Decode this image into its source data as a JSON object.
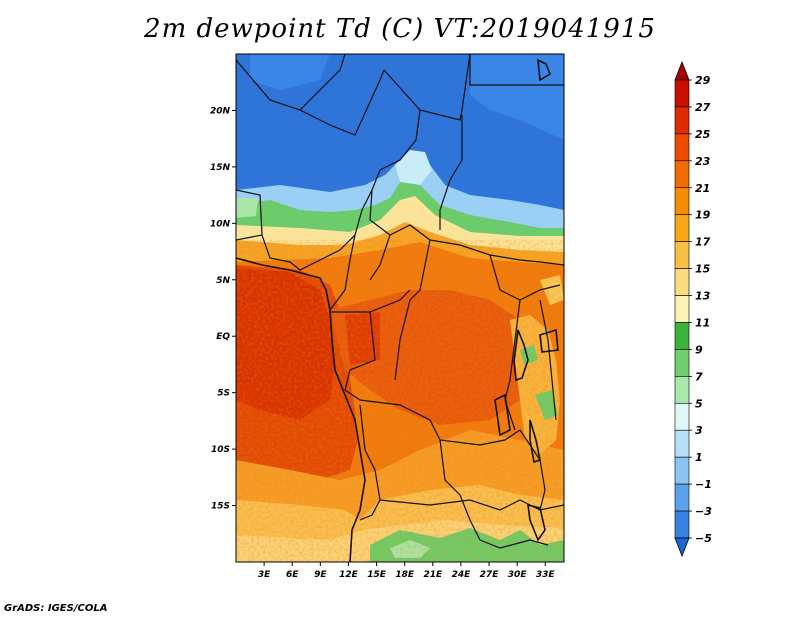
{
  "title": "2m dewpoint Td (C) VT:2019041915",
  "footer": "GrADS: IGES/COLA",
  "map": {
    "variable": "2m dewpoint",
    "units": "C",
    "valid_time": "2019041915",
    "lat_labels": [
      "20N",
      "15N",
      "10N",
      "5N",
      "EQ",
      "5S",
      "10S",
      "15S"
    ],
    "lat_values": [
      20,
      15,
      10,
      5,
      0,
      -5,
      -10,
      -15
    ],
    "lon_labels": [
      "3E",
      "6E",
      "9E",
      "12E",
      "15E",
      "18E",
      "21E",
      "24E",
      "27E",
      "30E",
      "33E"
    ],
    "lon_values": [
      3,
      6,
      9,
      12,
      15,
      18,
      21,
      24,
      27,
      30,
      33
    ],
    "lon_range": [
      0,
      35
    ],
    "lat_range": [
      -20,
      25
    ]
  },
  "colorbar": {
    "labels": [
      "29",
      "27",
      "25",
      "23",
      "21",
      "19",
      "17",
      "15",
      "13",
      "11",
      "9",
      "7",
      "5",
      "3",
      "1",
      "−1",
      "−3",
      "−5"
    ],
    "colors": [
      "#a50000",
      "#c80f00",
      "#e02a00",
      "#ee4a00",
      "#f26b00",
      "#f58d00",
      "#f8a814",
      "#f9c040",
      "#fbdc7a",
      "#faf3b4",
      "#3cb43c",
      "#6fd06f",
      "#a8e8a8",
      "#e0f8f8",
      "#b8e0f8",
      "#8cc4f4",
      "#5aa2ec",
      "#3682e0",
      "#1e64d2"
    ]
  }
}
